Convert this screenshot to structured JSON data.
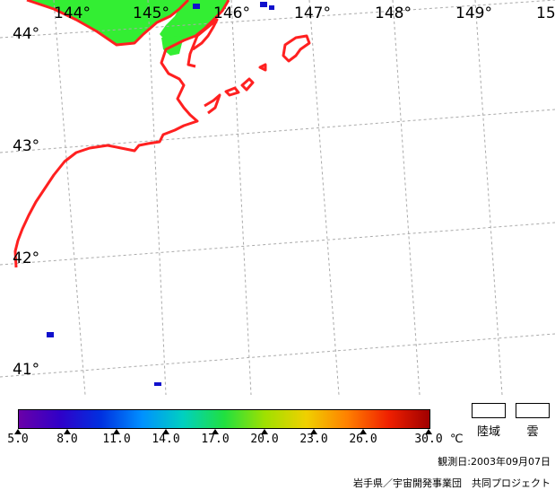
{
  "map": {
    "longitude_labels": [
      "144°",
      "145°",
      "146°",
      "147°",
      "148°",
      "149°",
      "15"
    ],
    "latitude_labels": [
      "44°",
      "43°",
      "42°",
      "41°"
    ],
    "colors": {
      "coastline": "#ff2020",
      "land": "#33ee33",
      "grid": "#aaaaaa",
      "cloud_pixel": "#1010cc"
    }
  },
  "colorbar": {
    "tick_labels": [
      "5.0",
      "8.0",
      "11.0",
      "14.0",
      "17.0",
      "20.0",
      "23.0",
      "26.0",
      "30.0"
    ],
    "unit": "℃",
    "min": 5.0,
    "max": 30.0,
    "colors": [
      "#6a00a8",
      "#3000c8",
      "#0030e0",
      "#0090ff",
      "#00d0c0",
      "#20e040",
      "#a0e000",
      "#f0d000",
      "#ff8000",
      "#f02000",
      "#a00000"
    ]
  },
  "legend": {
    "land_label": "陸域",
    "cloud_label": "雲"
  },
  "footer": {
    "observation_date": "観測日:2003年09月07日",
    "credit": "岩手県／宇宙開発事業団　共同プロジェクト"
  }
}
